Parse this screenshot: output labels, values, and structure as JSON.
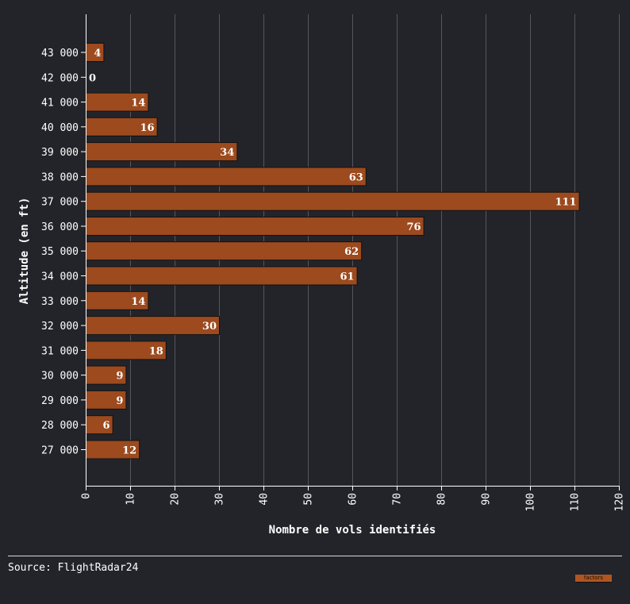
{
  "chart_data": {
    "type": "bar",
    "orientation": "horizontal",
    "categories": [
      "43 000",
      "42 000",
      "41 000",
      "40 000",
      "39 000",
      "38 000",
      "37 000",
      "36 000",
      "35 000",
      "34 000",
      "33 000",
      "32 000",
      "31 000",
      "30 000",
      "29 000",
      "28 000",
      "27 000"
    ],
    "values": [
      4,
      0,
      14,
      16,
      34,
      63,
      111,
      76,
      62,
      61,
      14,
      30,
      18,
      9,
      9,
      6,
      12
    ],
    "xlabel": "Nombre de vols identifiés",
    "ylabel": "Altitude (en ft)",
    "xlim": [
      0,
      120
    ],
    "xticks": [
      0,
      10,
      20,
      30,
      40,
      50,
      60,
      70,
      80,
      90,
      100,
      110,
      120
    ],
    "grid": true,
    "bar_color": "#9c4a1e",
    "bar_edge_color": "#111111"
  },
  "footer": {
    "source": "Source: FlightRadar24",
    "logo_text": "factors"
  },
  "colors": {
    "background": "#23242a",
    "grid": "#55565c",
    "text": "#ffffff"
  }
}
